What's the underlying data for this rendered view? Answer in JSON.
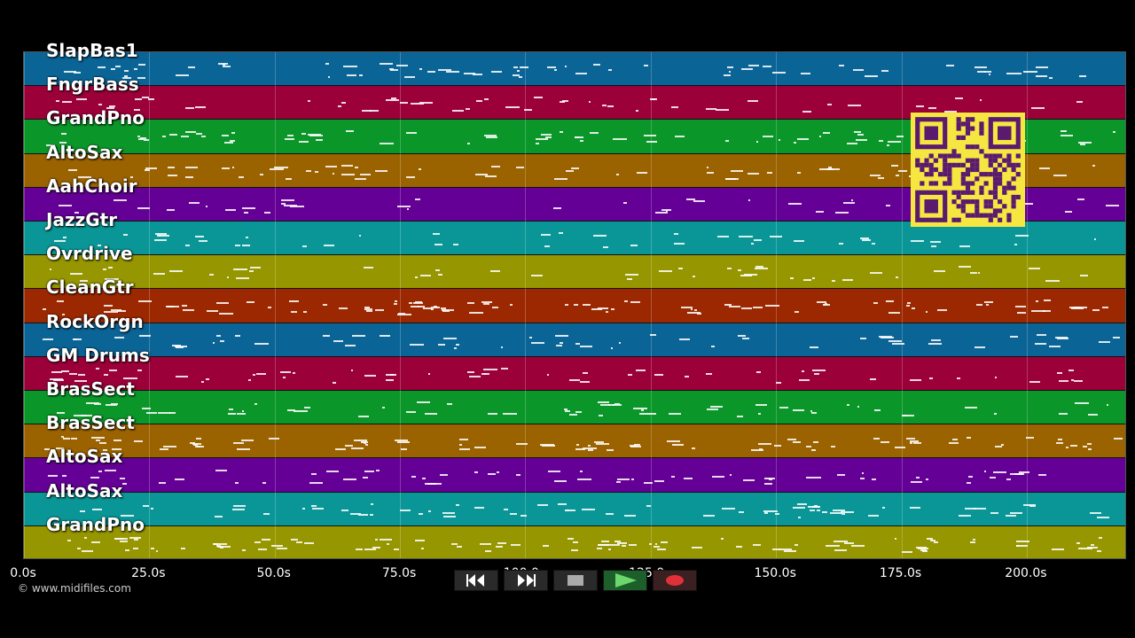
{
  "tracks": [
    {
      "name": "SlapBas1",
      "color": "#0b6496"
    },
    {
      "name": "FngrBass",
      "color": "#9b0038"
    },
    {
      "name": "GrandPno",
      "color": "#0a9628"
    },
    {
      "name": "AltoSax",
      "color": "#9b6200"
    },
    {
      "name": "AahChoir",
      "color": "#640096"
    },
    {
      "name": "JazzGtr",
      "color": "#0a9696"
    },
    {
      "name": "Ovrdrive",
      "color": "#969600"
    },
    {
      "name": "CleanGtr",
      "color": "#9b2800"
    },
    {
      "name": "RockOrgn",
      "color": "#0b6496"
    },
    {
      "name": "GM Drums",
      "color": "#9b0038"
    },
    {
      "name": "BrasSect",
      "color": "#0a9628"
    },
    {
      "name": "BrasSect",
      "color": "#9b6200"
    },
    {
      "name": "AltoSax",
      "color": "#640096"
    },
    {
      "name": "AltoSax",
      "color": "#0a9696"
    },
    {
      "name": "GrandPno",
      "color": "#969600"
    }
  ],
  "axis": {
    "ticks": [
      "0.0s",
      "25.0s",
      "50.0s",
      "75.0s",
      "100.0s",
      "125.0s",
      "150.0s",
      "175.0s",
      "200.0s"
    ],
    "seconds_range": [
      0,
      220
    ]
  },
  "credit": "© www.midifiles.com",
  "transport": {
    "rewind_icon": "rewind-icon",
    "forward_icon": "fast-forward-icon",
    "stop_icon": "stop-icon",
    "play_icon": "play-icon",
    "record_icon": "record-icon"
  },
  "qr_code": {
    "color": "#f5e642"
  }
}
